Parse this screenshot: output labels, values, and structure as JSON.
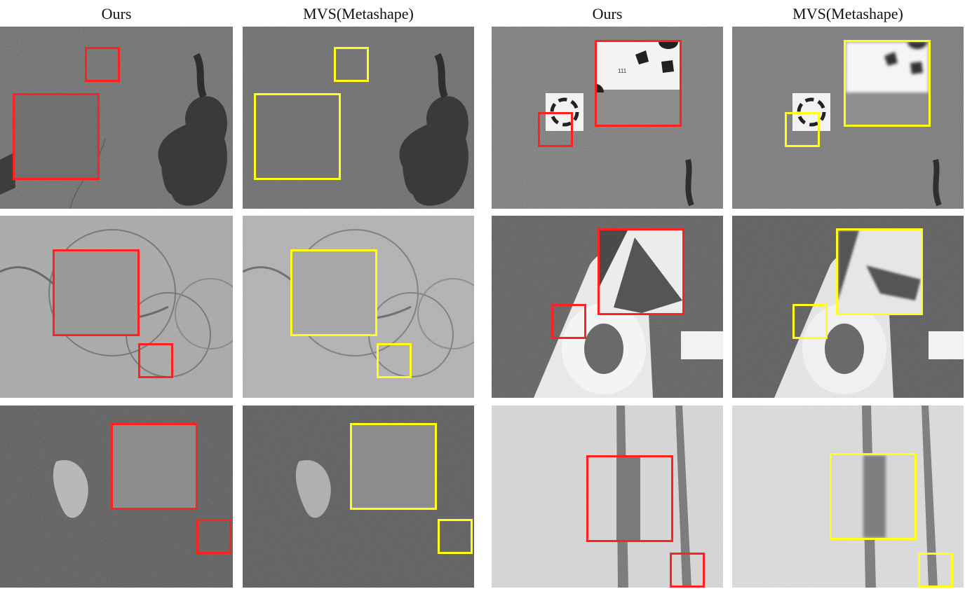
{
  "figure": {
    "columns": [
      {
        "label": "Ours"
      },
      {
        "label": "MVS(Metashape)"
      },
      {
        "label": "Ours"
      },
      {
        "label": "MVS(Metashape)"
      }
    ],
    "marker_text": "111",
    "box_colors": {
      "ours": "#ff2020",
      "mvs": "#ffff1a"
    }
  }
}
